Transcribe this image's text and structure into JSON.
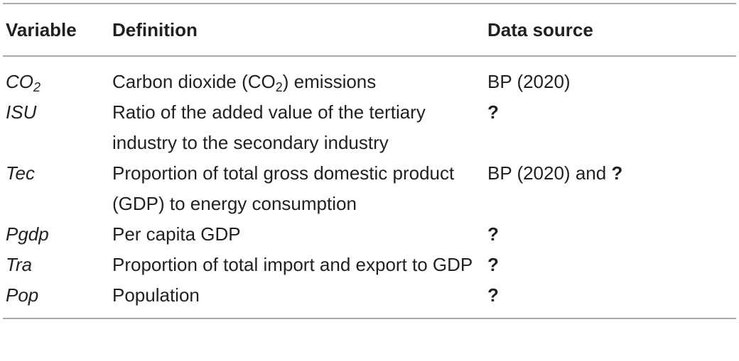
{
  "table": {
    "headers": {
      "variable": "Variable",
      "definition": "Definition",
      "source": "Data source"
    },
    "rows": [
      {
        "var_main": "CO",
        "var_sub": "2",
        "def_before": "Carbon dioxide (CO",
        "def_sub": "2",
        "def_after": ") emissions",
        "src_text": "BP (2020)",
        "src_mark": ""
      },
      {
        "var_main": "ISU",
        "var_sub": "",
        "def_before": "Ratio of the added value of the tertiary industry to the secondary industry",
        "def_sub": "",
        "def_after": "",
        "src_text": "",
        "src_mark": "?"
      },
      {
        "var_main": "Tec",
        "var_sub": "",
        "def_before": "Proportion of total gross domestic product (GDP) to energy consumption",
        "def_sub": "",
        "def_after": "",
        "src_text": "BP (2020) and ",
        "src_mark": "?"
      },
      {
        "var_main": "Pgdp",
        "var_sub": "",
        "def_before": "Per capita GDP",
        "def_sub": "",
        "def_after": "",
        "src_text": "",
        "src_mark": "?"
      },
      {
        "var_main": "Tra",
        "var_sub": "",
        "def_before": "Proportion of total import and export to GDP",
        "def_sub": "",
        "def_after": "",
        "src_text": "",
        "src_mark": "?"
      },
      {
        "var_main": "Pop",
        "var_sub": "",
        "def_before": "Population",
        "def_sub": "",
        "def_after": "",
        "src_text": "",
        "src_mark": "?"
      }
    ]
  }
}
